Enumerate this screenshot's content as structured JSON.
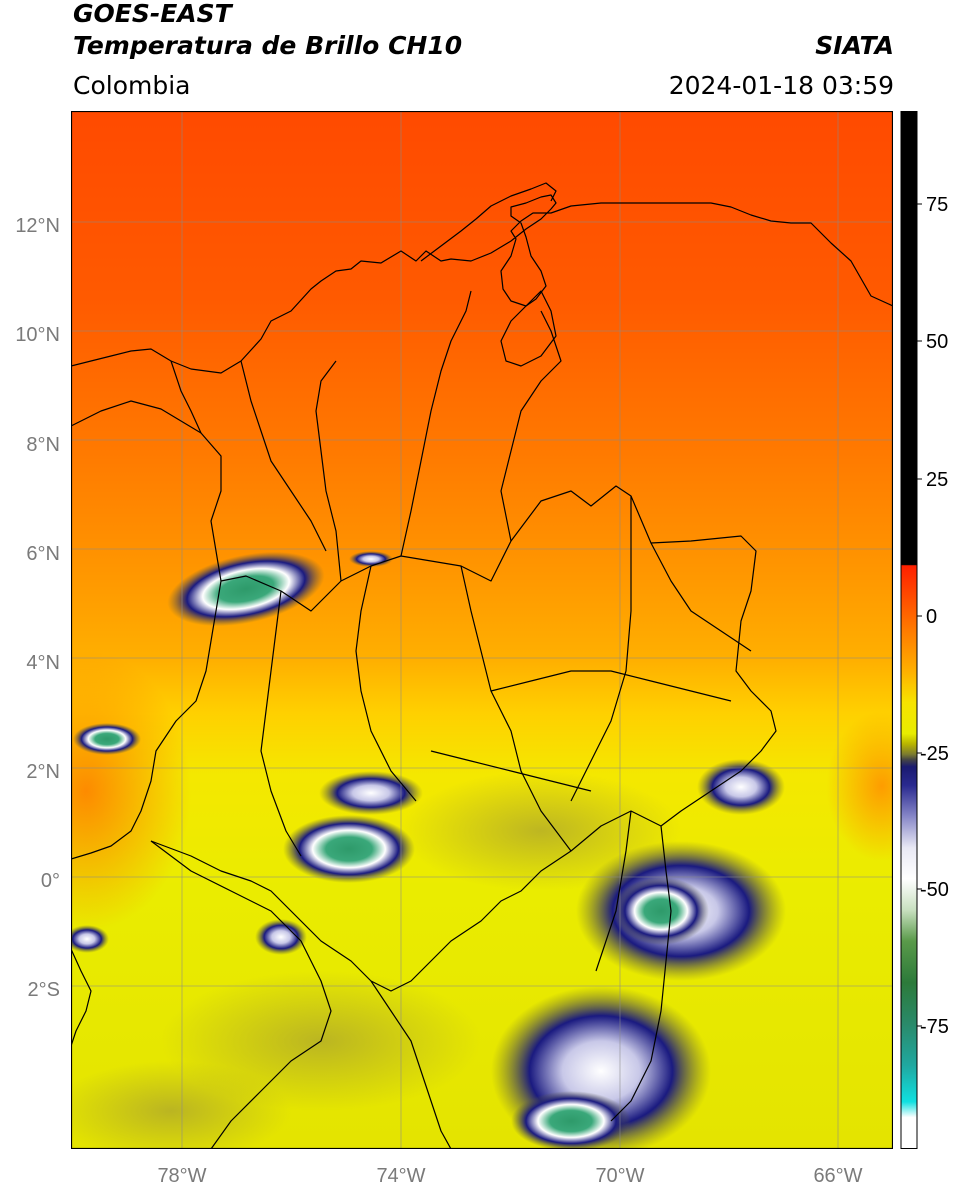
{
  "header": {
    "title_line1": "GOES-EAST",
    "title_line2": "Temperatura de Brillo CH10",
    "region": "Colombia",
    "source": "SIATA",
    "datetime": "2024-01-18 03:59"
  },
  "map": {
    "lat_labels": [
      "12°N",
      "10°N",
      "8°N",
      "6°N",
      "4°N",
      "2°N",
      "0°",
      "2°S"
    ],
    "lon_labels": [
      "78°W",
      "74°W",
      "70°W",
      "66°W"
    ],
    "colors": {
      "warm": "#ff4400",
      "mid": "#ffa000",
      "cool": "#f2f000",
      "cold_blue": "#1a1a7a",
      "cold_white": "#ffffff",
      "cold_green": "#2e8a3e"
    }
  },
  "colorbar": {
    "tick_labels": [
      "75",
      "50",
      "25",
      "0",
      "-25",
      "-50",
      "-75"
    ],
    "range": [
      -95,
      90
    ]
  }
}
